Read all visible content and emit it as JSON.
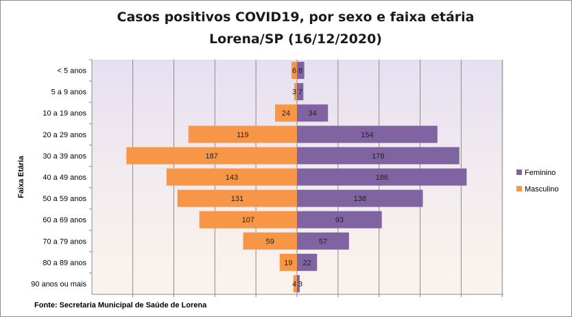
{
  "chart_data": {
    "type": "bar",
    "orientation": "horizontal-pyramid",
    "title": "Casos positivos COVID19, por sexo e faixa etária",
    "subtitle": "Lorena/SP (16/12/2020)",
    "ylabel": "Faixa Etária",
    "categories": [
      "< 5 anos",
      "5 a 9 anos",
      "10 a 19 anos",
      "20 a 29 anos",
      "30 a 39 anos",
      "40 a 49 anos",
      "50 a 59 anos",
      "60 a 69 anos ",
      "70 a 79 anos",
      "80 a 89 anos",
      "90 anos ou mais"
    ],
    "series": [
      {
        "name": "Masculino",
        "values": [
          6,
          3,
          24,
          119,
          187,
          143,
          131,
          107,
          59,
          19,
          4
        ],
        "color": "#F79646",
        "side": "left"
      },
      {
        "name": "Feminino",
        "values": [
          8,
          7,
          34,
          154,
          178,
          186,
          138,
          93,
          57,
          22,
          3
        ],
        "color": "#8064A2",
        "side": "right"
      }
    ],
    "xlim": [
      -200,
      200
    ],
    "x_gridline_step": 45,
    "grid": true,
    "legend_position": "right",
    "legend_order": [
      "Feminino",
      "Masculino"
    ],
    "source": "Fonte: Secretaria Municipal  de Saúde de Lorena"
  }
}
